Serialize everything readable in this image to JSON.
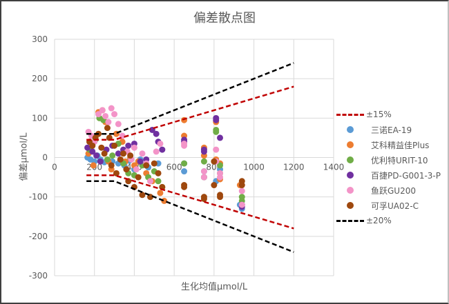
{
  "chart_data": {
    "type": "scatter",
    "title": "偏差散点图",
    "xlabel": "生化均值μmol/L",
    "ylabel": "偏差μmol/L",
    "xlim": [
      0,
      1400
    ],
    "ylim": [
      -300,
      300
    ],
    "xticks": [
      0,
      200,
      400,
      600,
      800,
      1000,
      1200,
      1400
    ],
    "yticks": [
      300,
      200,
      100,
      0,
      -100,
      -200,
      -300
    ],
    "grid": true,
    "legend_position": "right",
    "series": [
      {
        "name": "三诺EA-19",
        "color": "#5b9bd5",
        "points": [
          [
            165,
            0
          ],
          [
            180,
            -5
          ],
          [
            200,
            -10
          ],
          [
            215,
            5
          ],
          [
            230,
            -5
          ],
          [
            250,
            -12
          ],
          [
            270,
            -8
          ],
          [
            290,
            -10
          ],
          [
            320,
            -15
          ],
          [
            350,
            -20
          ],
          [
            375,
            -8
          ],
          [
            400,
            -30
          ],
          [
            430,
            -5
          ],
          [
            470,
            -25
          ],
          [
            520,
            -15
          ],
          [
            650,
            -15
          ],
          [
            650,
            -35
          ],
          [
            750,
            -35
          ],
          [
            750,
            -50
          ],
          [
            810,
            -60
          ],
          [
            830,
            -30
          ],
          [
            930,
            -120
          ],
          [
            940,
            -130
          ]
        ]
      },
      {
        "name": "艾科精益佳Plus",
        "color": "#ed7d31",
        "points": [
          [
            170,
            10
          ],
          [
            195,
            -20
          ],
          [
            220,
            115
          ],
          [
            240,
            120
          ],
          [
            255,
            90
          ],
          [
            270,
            -10
          ],
          [
            285,
            -30
          ],
          [
            310,
            60
          ],
          [
            340,
            40
          ],
          [
            355,
            -10
          ],
          [
            380,
            0
          ],
          [
            400,
            -20
          ],
          [
            420,
            -10
          ],
          [
            460,
            -40
          ],
          [
            490,
            -60
          ],
          [
            530,
            -90
          ],
          [
            550,
            -110
          ],
          [
            650,
            95
          ],
          [
            650,
            55
          ],
          [
            750,
            25
          ],
          [
            750,
            5
          ],
          [
            810,
            -5
          ],
          [
            810,
            90
          ],
          [
            830,
            -15
          ],
          [
            830,
            -55
          ],
          [
            930,
            -70
          ]
        ]
      },
      {
        "name": "优利特URIT-10",
        "color": "#70ad47",
        "points": [
          [
            175,
            20
          ],
          [
            205,
            45
          ],
          [
            225,
            100
          ],
          [
            245,
            95
          ],
          [
            265,
            -5
          ],
          [
            290,
            5
          ],
          [
            320,
            35
          ],
          [
            345,
            -15
          ],
          [
            370,
            -40
          ],
          [
            400,
            -45
          ],
          [
            440,
            -20
          ],
          [
            470,
            -50
          ],
          [
            500,
            -35
          ],
          [
            520,
            -60
          ],
          [
            540,
            -75
          ],
          [
            650,
            -15
          ],
          [
            750,
            -10
          ],
          [
            750,
            -50
          ],
          [
            810,
            65
          ],
          [
            810,
            70
          ],
          [
            830,
            -20
          ],
          [
            830,
            -40
          ],
          [
            940,
            -100
          ],
          [
            940,
            -110
          ]
        ]
      },
      {
        "name": "百捷PD-G001-3-P",
        "color": "#7030a0",
        "points": [
          [
            165,
            25
          ],
          [
            190,
            15
          ],
          [
            210,
            5
          ],
          [
            230,
            -10
          ],
          [
            260,
            20
          ],
          [
            290,
            30
          ],
          [
            320,
            10
          ],
          [
            345,
            20
          ],
          [
            370,
            30
          ],
          [
            400,
            35
          ],
          [
            430,
            -10
          ],
          [
            460,
            -5
          ],
          [
            490,
            70
          ],
          [
            510,
            60
          ],
          [
            520,
            40
          ],
          [
            540,
            20
          ],
          [
            650,
            45
          ],
          [
            650,
            40
          ],
          [
            750,
            20
          ],
          [
            750,
            15
          ],
          [
            810,
            95
          ],
          [
            810,
            100
          ],
          [
            830,
            50
          ],
          [
            940,
            -120
          ],
          [
            940,
            -125
          ]
        ]
      },
      {
        "name": "鱼跃GU200",
        "color": "#f394c8",
        "points": [
          [
            170,
            65
          ],
          [
            185,
            55
          ],
          [
            200,
            40
          ],
          [
            220,
            110
          ],
          [
            240,
            120
          ],
          [
            255,
            105
          ],
          [
            270,
            90
          ],
          [
            285,
            125
          ],
          [
            300,
            110
          ],
          [
            320,
            85
          ],
          [
            340,
            55
          ],
          [
            365,
            15
          ],
          [
            385,
            -5
          ],
          [
            400,
            25
          ],
          [
            410,
            -30
          ],
          [
            440,
            10
          ],
          [
            460,
            -15
          ],
          [
            480,
            -60
          ],
          [
            510,
            15
          ],
          [
            530,
            35
          ],
          [
            650,
            30
          ],
          [
            650,
            35
          ],
          [
            750,
            -35
          ],
          [
            750,
            -50
          ],
          [
            810,
            20
          ],
          [
            810,
            -10
          ],
          [
            830,
            -40
          ],
          [
            830,
            -50
          ],
          [
            940,
            -85
          ],
          [
            940,
            -120
          ]
        ]
      },
      {
        "name": "可孚UA02-C",
        "color": "#9e480e",
        "points": [
          [
            175,
            40
          ],
          [
            190,
            30
          ],
          [
            205,
            50
          ],
          [
            220,
            60
          ],
          [
            235,
            25
          ],
          [
            250,
            10
          ],
          [
            265,
            75
          ],
          [
            275,
            50
          ],
          [
            285,
            -20
          ],
          [
            300,
            30
          ],
          [
            310,
            -40
          ],
          [
            330,
            -5
          ],
          [
            345,
            10
          ],
          [
            360,
            -30
          ],
          [
            370,
            -60
          ],
          [
            380,
            5
          ],
          [
            400,
            -75
          ],
          [
            420,
            -50
          ],
          [
            440,
            -95
          ],
          [
            460,
            -20
          ],
          [
            480,
            -100
          ],
          [
            500,
            -15
          ],
          [
            520,
            -40
          ],
          [
            540,
            -75
          ],
          [
            650,
            -70
          ],
          [
            650,
            -75
          ],
          [
            750,
            -100
          ],
          [
            750,
            -105
          ],
          [
            800,
            -10
          ],
          [
            800,
            -70
          ],
          [
            830,
            -95
          ],
          [
            830,
            -100
          ],
          [
            940,
            -60
          ],
          [
            940,
            -70
          ]
        ]
      }
    ],
    "reference_lines": [
      {
        "name": "±15%",
        "color": "#c00000",
        "upper": [
          [
            160,
            45
          ],
          [
            300,
            45
          ],
          [
            1200,
            180
          ]
        ],
        "lower": [
          [
            160,
            -45
          ],
          [
            300,
            -45
          ],
          [
            1200,
            -180
          ]
        ]
      },
      {
        "name": "±20%",
        "color": "#000000",
        "upper": [
          [
            160,
            60
          ],
          [
            300,
            60
          ],
          [
            1200,
            240
          ]
        ],
        "lower": [
          [
            160,
            -60
          ],
          [
            300,
            -60
          ],
          [
            1200,
            -240
          ]
        ]
      }
    ]
  },
  "legend": {
    "items": [
      {
        "label": "±15%",
        "type": "line",
        "color": "#c00000"
      },
      {
        "label": "三诺EA-19",
        "type": "marker",
        "color": "#5b9bd5"
      },
      {
        "label": "艾科精益佳Plus",
        "type": "marker",
        "color": "#ed7d31"
      },
      {
        "label": "优利特URIT-10",
        "type": "marker",
        "color": "#70ad47"
      },
      {
        "label": "百捷PD-G001-3-P",
        "type": "marker",
        "color": "#7030a0"
      },
      {
        "label": "鱼跃GU200",
        "type": "marker",
        "color": "#f394c8"
      },
      {
        "label": "可孚UA02-C",
        "type": "marker",
        "color": "#9e480e"
      },
      {
        "label": "±20%",
        "type": "line",
        "color": "#000000"
      }
    ]
  }
}
